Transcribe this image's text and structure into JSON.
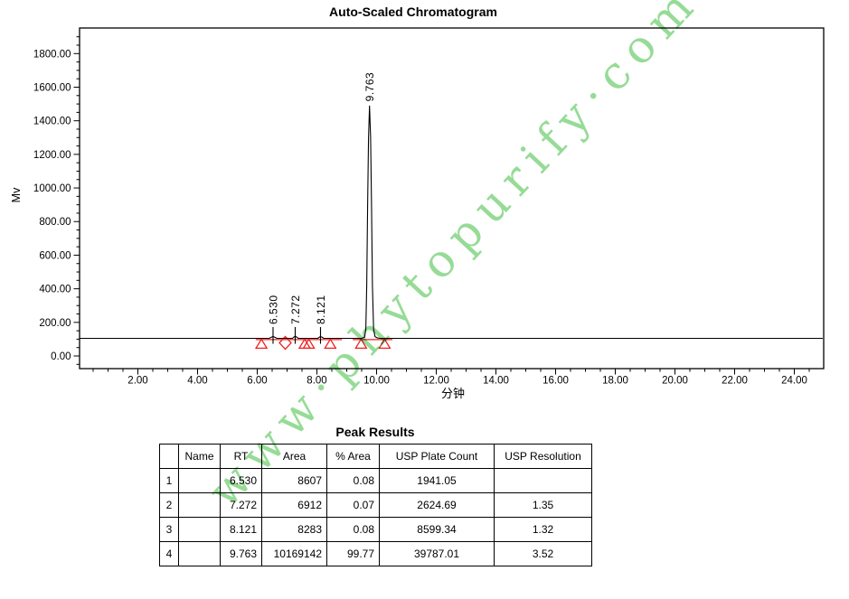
{
  "report": {
    "title": "Auto-Scaled Chromatogram"
  },
  "watermark": {
    "text": "www·phytopurify·com",
    "color": "#8dd88d"
  },
  "chart_data": {
    "type": "line",
    "title": "Auto-Scaled Chromatogram",
    "xlabel": "分钟",
    "ylabel": "Mv",
    "xlim": [
      0,
      24.95
    ],
    "ylim": [
      -75,
      1950
    ],
    "grid": false,
    "frame_color": "#000000",
    "x_axis": {
      "label": "分钟",
      "minor_step": 0.5,
      "ticks": [
        {
          "v": 2,
          "label": "2.00"
        },
        {
          "v": 4,
          "label": "4.00"
        },
        {
          "v": 6,
          "label": "6.00"
        },
        {
          "v": 8,
          "label": "8.00"
        },
        {
          "v": 10,
          "label": "10.00"
        },
        {
          "v": 12,
          "label": "12.00"
        },
        {
          "v": 14,
          "label": "14.00"
        },
        {
          "v": 16,
          "label": "16.00"
        },
        {
          "v": 18,
          "label": "18.00"
        },
        {
          "v": 20,
          "label": "20.00"
        },
        {
          "v": 22,
          "label": "22.00"
        },
        {
          "v": 24,
          "label": "24.00"
        }
      ]
    },
    "y_axis": {
      "label": "Mv",
      "minor_step": 50,
      "minor_range": [
        -50,
        1900
      ],
      "ticks": [
        {
          "v": 0,
          "label": "0.00"
        },
        {
          "v": 200,
          "label": "200.00"
        },
        {
          "v": 400,
          "label": "400.00"
        },
        {
          "v": 600,
          "label": "600.00"
        },
        {
          "v": 800,
          "label": "800.00"
        },
        {
          "v": 1000,
          "label": "1000.00"
        },
        {
          "v": 1200,
          "label": "1200.00"
        },
        {
          "v": 1400,
          "label": "1400.00"
        },
        {
          "v": 1600,
          "label": "1600.00"
        },
        {
          "v": 1800,
          "label": "1800.00"
        }
      ]
    },
    "series": [
      {
        "name": "signal",
        "color": "#000000",
        "points": [
          [
            0.05,
            105
          ],
          [
            6.4,
            105
          ],
          [
            6.49,
            113
          ],
          [
            6.53,
            116
          ],
          [
            6.57,
            113
          ],
          [
            6.66,
            105
          ],
          [
            7.18,
            105
          ],
          [
            7.24,
            114
          ],
          [
            7.272,
            116
          ],
          [
            7.31,
            114
          ],
          [
            7.38,
            105
          ],
          [
            8.03,
            105
          ],
          [
            8.09,
            113
          ],
          [
            8.121,
            115
          ],
          [
            8.16,
            113
          ],
          [
            8.23,
            105
          ],
          [
            9.5,
            105
          ],
          [
            9.6,
            112
          ],
          [
            9.64,
            160
          ],
          [
            9.67,
            420
          ],
          [
            9.7,
            900
          ],
          [
            9.73,
            1300
          ],
          [
            9.763,
            1488
          ],
          [
            9.8,
            1300
          ],
          [
            9.83,
            900
          ],
          [
            9.86,
            420
          ],
          [
            9.9,
            160
          ],
          [
            9.95,
            115
          ],
          [
            10.03,
            107
          ],
          [
            10.13,
            105
          ],
          [
            24.95,
            105
          ]
        ]
      }
    ],
    "peaks": [
      {
        "rt": 6.53,
        "rt_label": "6.530",
        "apex_mv": 116
      },
      {
        "rt": 7.272,
        "rt_label": "7.272",
        "apex_mv": 116
      },
      {
        "rt": 8.121,
        "rt_label": "8.121",
        "apex_mv": 115
      },
      {
        "rt": 9.763,
        "rt_label": "9.763",
        "apex_mv": 1488
      }
    ],
    "integration_marks": {
      "color": "#ee2222",
      "baseline_segments_rt": [
        [
          5.95,
          8.84
        ],
        [
          9.2,
          10.53
        ]
      ],
      "triangles_rt": [
        6.14,
        7.59,
        7.73,
        8.45,
        9.48,
        10.27
      ],
      "diamonds_rt": [
        6.94
      ]
    }
  },
  "table": {
    "title": "Peak Results",
    "columns": [
      "",
      "Name",
      "RT",
      "Area",
      "% Area",
      "USP Plate Count",
      "USP Resolution"
    ],
    "rows": [
      [
        "1",
        "",
        "6.530",
        "8607",
        "0.08",
        "1941.05",
        ""
      ],
      [
        "2",
        "",
        "7.272",
        "6912",
        "0.07",
        "2624.69",
        "1.35"
      ],
      [
        "3",
        "",
        "8.121",
        "8283",
        "0.08",
        "8599.34",
        "1.32"
      ],
      [
        "4",
        "",
        "9.763",
        "10169142",
        "99.77",
        "39787.01",
        "3.52"
      ]
    ]
  }
}
